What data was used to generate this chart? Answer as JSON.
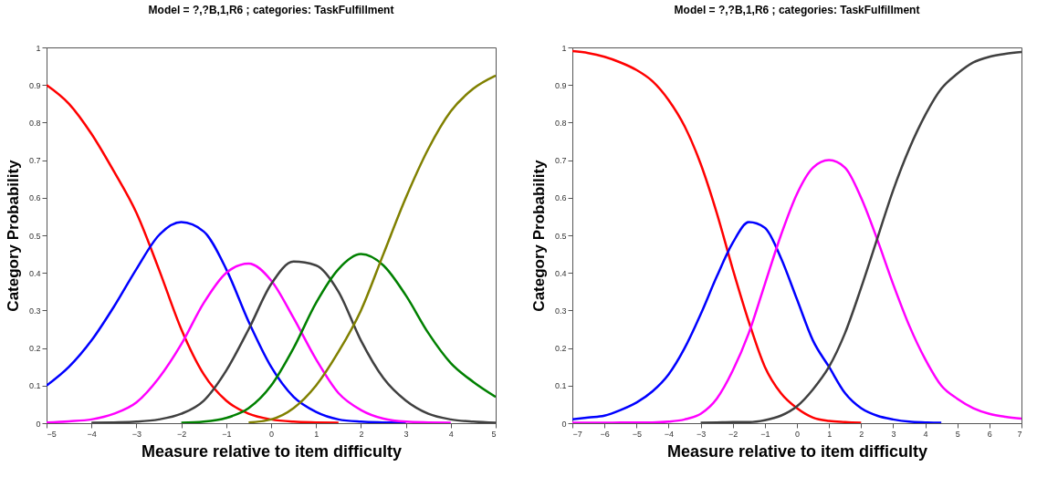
{
  "chart_data": [
    {
      "type": "line",
      "title": "Model = ?,?B,1,R6  ; categories: TaskFulfillment",
      "xlabel": "Measure relative to item difficulty",
      "ylabel": "Category  Probability",
      "x": [
        -5,
        -4.5,
        -4,
        -3.5,
        -3,
        -2.5,
        -2,
        -1.5,
        -1,
        -0.5,
        0,
        0.5,
        1,
        1.5,
        2,
        2.5,
        3,
        3.5,
        4,
        4.5,
        5
      ],
      "series": [
        {
          "color": "#ff0000",
          "values": [
            0.9,
            0.85,
            0.77,
            0.67,
            0.56,
            0.41,
            0.25,
            0.13,
            0.06,
            0.025,
            0.01,
            0.004,
            0.002,
            0.001,
            null,
            null,
            null,
            null,
            null,
            null,
            null
          ]
        },
        {
          "color": "#0000ff",
          "values": [
            0.1,
            0.15,
            0.22,
            0.31,
            0.41,
            0.5,
            0.535,
            0.51,
            0.41,
            0.27,
            0.15,
            0.07,
            0.03,
            0.01,
            0.004,
            0.002,
            0.001,
            null,
            null,
            null,
            null
          ]
        },
        {
          "color": "#ff00ff",
          "values": [
            0.002,
            0.005,
            0.01,
            0.025,
            0.055,
            0.12,
            0.21,
            0.32,
            0.4,
            0.425,
            0.38,
            0.28,
            0.17,
            0.08,
            0.035,
            0.012,
            0.004,
            0.002,
            0.001,
            null,
            null
          ]
        },
        {
          "color": "#404040",
          "values": [
            null,
            null,
            0.001,
            0.002,
            0.004,
            0.01,
            0.025,
            0.06,
            0.14,
            0.25,
            0.37,
            0.43,
            0.42,
            0.35,
            0.22,
            0.12,
            0.06,
            0.025,
            0.01,
            0.004,
            0.001
          ]
        },
        {
          "color": "#008000",
          "values": [
            null,
            null,
            null,
            null,
            null,
            null,
            0.001,
            0.004,
            0.014,
            0.04,
            0.1,
            0.2,
            0.32,
            0.41,
            0.45,
            0.42,
            0.34,
            0.24,
            0.16,
            0.11,
            0.07
          ]
        },
        {
          "color": "#808000",
          "values": [
            null,
            null,
            null,
            null,
            null,
            null,
            null,
            null,
            null,
            0.002,
            0.01,
            0.04,
            0.1,
            0.19,
            0.3,
            0.45,
            0.6,
            0.73,
            0.83,
            0.89,
            0.925
          ]
        }
      ],
      "xlim": [
        -5,
        5
      ],
      "ylim": [
        0,
        1
      ],
      "xticks": [
        -5,
        -4,
        -3,
        -2,
        -1,
        0,
        1,
        2,
        3,
        4,
        5
      ],
      "yticks": [
        0,
        0.1,
        0.2,
        0.3,
        0.4,
        0.5,
        0.6,
        0.7,
        0.8,
        0.9,
        1
      ]
    },
    {
      "type": "line",
      "title": "Model = ?,?B,1,R6  ; categories: TaskFulfillment",
      "xlabel": "Measure relative to item difficulty",
      "ylabel": "Category  Probability",
      "x": [
        -7,
        -6.5,
        -6,
        -5.5,
        -5,
        -4.5,
        -4,
        -3.5,
        -3,
        -2.5,
        -2,
        -1.5,
        -1,
        -0.5,
        0,
        0.5,
        1,
        1.5,
        2,
        2.5,
        3,
        3.5,
        4,
        4.5,
        5,
        5.5,
        6,
        6.5,
        7
      ],
      "series": [
        {
          "color": "#ff0000",
          "values": [
            0.99,
            0.985,
            0.975,
            0.96,
            0.94,
            0.91,
            0.86,
            0.79,
            0.69,
            0.56,
            0.41,
            0.27,
            0.15,
            0.08,
            0.04,
            0.015,
            0.006,
            0.003,
            0.001,
            null,
            null,
            null,
            null,
            null,
            null,
            null,
            null,
            null,
            null
          ]
        },
        {
          "color": "#0000ff",
          "values": [
            0.01,
            0.015,
            0.02,
            0.035,
            0.055,
            0.085,
            0.13,
            0.2,
            0.29,
            0.39,
            0.48,
            0.535,
            0.52,
            0.44,
            0.33,
            0.22,
            0.15,
            0.08,
            0.04,
            0.02,
            0.01,
            0.004,
            0.002,
            0.001,
            null,
            null,
            null,
            null,
            null
          ]
        },
        {
          "color": "#ff00ff",
          "values": [
            0.001,
            0.001,
            0.001,
            0.002,
            0.002,
            0.002,
            0.004,
            0.01,
            0.025,
            0.065,
            0.14,
            0.24,
            0.37,
            0.5,
            0.61,
            0.68,
            0.7,
            0.68,
            0.6,
            0.49,
            0.37,
            0.26,
            0.17,
            0.1,
            0.065,
            0.04,
            0.025,
            0.017,
            0.012
          ]
        },
        {
          "color": "#404040",
          "values": [
            null,
            null,
            null,
            null,
            null,
            null,
            null,
            null,
            0.001,
            0.002,
            0.003,
            0.003,
            0.008,
            0.02,
            0.045,
            0.09,
            0.15,
            0.24,
            0.36,
            0.49,
            0.62,
            0.73,
            0.82,
            0.89,
            0.93,
            0.96,
            0.975,
            0.983,
            0.988
          ]
        }
      ],
      "xlim": [
        -7,
        7
      ],
      "ylim": [
        0,
        1
      ],
      "xticks": [
        -7,
        -6,
        -5,
        -4,
        -3,
        -2,
        -1,
        0,
        1,
        2,
        3,
        4,
        5,
        6,
        7
      ],
      "yticks": [
        0,
        0.1,
        0.2,
        0.3,
        0.4,
        0.5,
        0.6,
        0.7,
        0.8,
        0.9,
        1
      ]
    }
  ]
}
